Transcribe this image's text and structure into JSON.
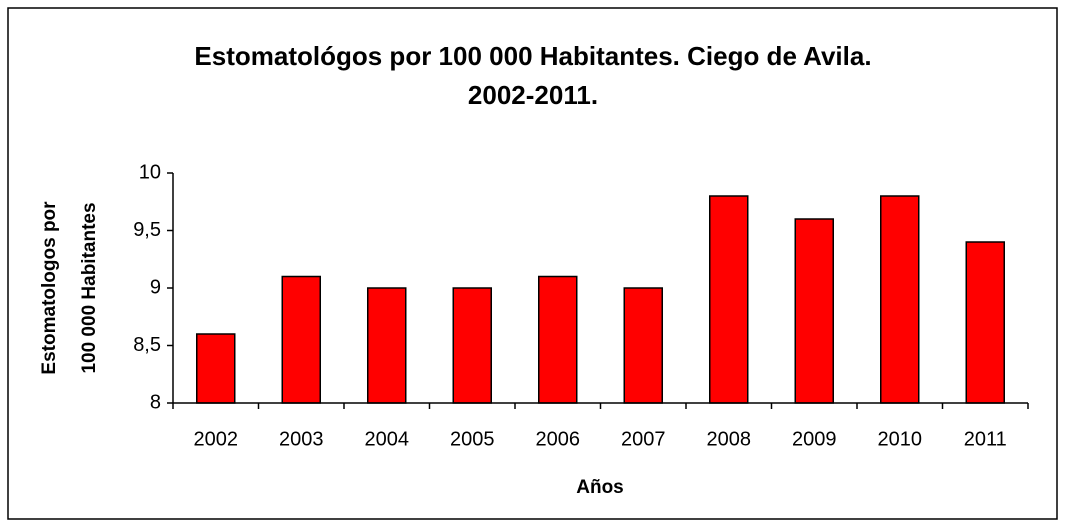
{
  "chart_data": {
    "type": "bar",
    "title": [
      "Estomatológos por 100 000 Habitantes. Ciego de Avila.",
      "2002-2011."
    ],
    "x_label": "Años",
    "y_label": [
      "Estomatologos por",
      "100 000 Habitantes"
    ],
    "categories": [
      "2002",
      "2003",
      "2004",
      "2005",
      "2006",
      "2007",
      "2008",
      "2009",
      "2010",
      "2011"
    ],
    "values": [
      8.6,
      9.1,
      9.0,
      9.0,
      9.1,
      9.0,
      9.8,
      9.6,
      9.8,
      9.4
    ],
    "color": "#ff0000",
    "ylim": [
      8,
      10
    ],
    "yticks": [
      8,
      {
        "value": 8.5,
        "label": "8,5"
      },
      9,
      {
        "value": 9.5,
        "label": "9,5"
      },
      10
    ],
    "grid": false
  }
}
